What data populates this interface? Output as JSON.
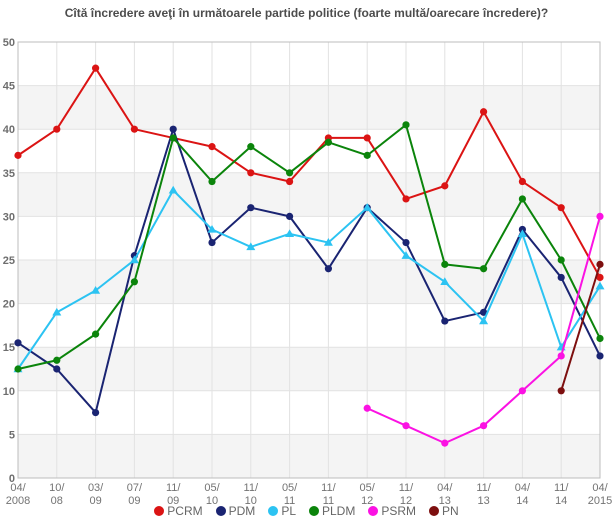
{
  "chart_data": {
    "type": "line",
    "title": "Cîtă încredere aveţi în următoarele partide politice (foarte multă/oarecare încredere)?",
    "xlabel": "",
    "ylabel": "",
    "ylim": [
      0,
      50
    ],
    "y_tick_step": 5,
    "y_ticks": [
      0,
      5,
      10,
      15,
      20,
      25,
      30,
      35,
      40,
      45,
      50
    ],
    "grid": true,
    "band_shading": "alternating horizontal bands every 5 units",
    "legend_position": "bottom",
    "categories": [
      "04/2008",
      "10/08",
      "03/09",
      "07/09",
      "11/09",
      "05/10",
      "11/10",
      "05/11",
      "11/11",
      "05/12",
      "11/12",
      "04/13",
      "11/13",
      "04/14",
      "11/14",
      "04/2015"
    ],
    "series": [
      {
        "name": "PCRM",
        "color": "#db1414",
        "marker": "circle",
        "values": [
          37,
          40,
          47,
          40,
          39,
          38,
          35,
          34,
          39,
          39,
          32,
          33.5,
          42,
          34,
          31,
          23
        ]
      },
      {
        "name": "PDM",
        "color": "#1a2472",
        "marker": "circle",
        "values": [
          15.5,
          12.5,
          7.5,
          25.5,
          40,
          27,
          31,
          30,
          24,
          31,
          27,
          18,
          19,
          28.5,
          23,
          14
        ]
      },
      {
        "name": "PL",
        "color": "#2cc3f2",
        "marker": "triangle",
        "values": [
          12.5,
          19,
          21.5,
          25,
          33,
          28.5,
          26.5,
          28,
          27,
          31,
          25.5,
          22.5,
          18,
          28,
          15,
          22
        ]
      },
      {
        "name": "PLDM",
        "color": "#0b840b",
        "marker": "circle",
        "values": [
          12.5,
          13.5,
          16.5,
          22.5,
          39,
          34,
          38,
          35,
          38.5,
          37,
          40.5,
          24.5,
          24,
          32,
          25,
          16
        ]
      },
      {
        "name": "PSRM",
        "color": "#fb12e3",
        "marker": "circle",
        "values": [
          null,
          null,
          null,
          null,
          null,
          null,
          null,
          null,
          null,
          8,
          6,
          4,
          6,
          10,
          14,
          30
        ]
      },
      {
        "name": "PN",
        "color": "#7d0f0f",
        "marker": "circle",
        "values": [
          null,
          null,
          null,
          null,
          null,
          null,
          null,
          null,
          null,
          null,
          null,
          null,
          null,
          null,
          10,
          24.5
        ]
      }
    ]
  }
}
